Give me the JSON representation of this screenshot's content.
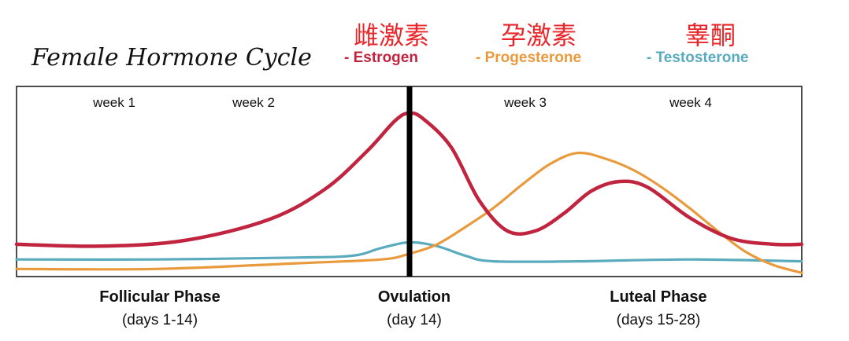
{
  "chart_data": {
    "type": "line",
    "title": "Female Hormone Cycle",
    "legend": [
      {
        "key": "estrogen",
        "cn": "雌激素",
        "label": "- Estrogen",
        "color": "#c0243f"
      },
      {
        "key": "progesterone",
        "cn": "孕激素",
        "label": "- Progesterone",
        "color": "#e89a3c"
      },
      {
        "key": "testosterone",
        "cn": "睾酮",
        "label": "- Testosterone",
        "color": "#5aabbd"
      }
    ],
    "x_domain": [
      0,
      28
    ],
    "y_domain": [
      0,
      1
    ],
    "weeks": [
      {
        "label": "week 1",
        "x": 3.5
      },
      {
        "label": "week 2",
        "x": 10.5
      },
      {
        "label": "week 3",
        "x": 17.5
      },
      {
        "label": "week 4",
        "x": 24.5
      }
    ],
    "ovulation_day": 14,
    "phases": [
      {
        "name": "Follicular Phase",
        "days": "(days 1-14)",
        "x": 7.0
      },
      {
        "name": "Ovulation",
        "days": "(day 14)",
        "x": 14.2
      },
      {
        "name": "Luteal Phase",
        "days": "(days 15-28)",
        "x": 22.0
      }
    ],
    "series": [
      {
        "name": "Estrogen",
        "color": "#c0243f",
        "x": [
          0,
          3,
          6,
          9,
          11,
          12.5,
          13.5,
          14,
          14.5,
          15.5,
          16.5,
          17.5,
          18.5,
          19.5,
          20.5,
          21.5,
          22.5,
          24,
          25.5,
          27,
          28
        ],
        "y": [
          0.17,
          0.16,
          0.19,
          0.3,
          0.46,
          0.66,
          0.82,
          0.86,
          0.83,
          0.68,
          0.4,
          0.24,
          0.24,
          0.33,
          0.45,
          0.5,
          0.47,
          0.31,
          0.2,
          0.17,
          0.17
        ]
      },
      {
        "name": "Progesterone",
        "color": "#e89a3c",
        "x": [
          0,
          5,
          10,
          13,
          14,
          15,
          16,
          17,
          18,
          19,
          20,
          21,
          22,
          23,
          24,
          25,
          26,
          27,
          28
        ],
        "y": [
          0.04,
          0.04,
          0.07,
          0.09,
          0.12,
          0.17,
          0.26,
          0.36,
          0.48,
          0.59,
          0.65,
          0.62,
          0.56,
          0.47,
          0.36,
          0.24,
          0.13,
          0.06,
          0.02
        ]
      },
      {
        "name": "Testosterone",
        "color": "#5aabbd",
        "x": [
          0,
          5,
          10,
          12,
          13,
          14,
          15,
          16,
          17,
          20,
          24,
          28
        ],
        "y": [
          0.09,
          0.09,
          0.1,
          0.11,
          0.15,
          0.18,
          0.16,
          0.11,
          0.08,
          0.08,
          0.09,
          0.08
        ]
      }
    ]
  }
}
